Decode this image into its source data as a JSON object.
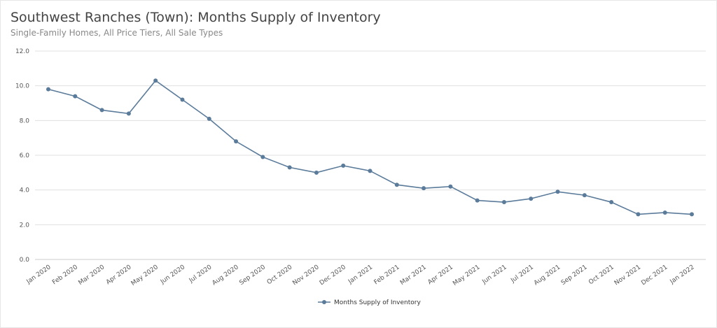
{
  "chart_data": {
    "type": "line",
    "title": "Southwest Ranches (Town): Months Supply of Inventory",
    "subtitle": "Single-Family Homes, All Price Tiers, All Sale Types",
    "categories": [
      "Jan 2020",
      "Feb 2020",
      "Mar 2020",
      "Apr 2020",
      "May 2020",
      "Jun 2020",
      "Jul 2020",
      "Aug 2020",
      "Sep 2020",
      "Oct 2020",
      "Nov 2020",
      "Dec 2020",
      "Jan 2021",
      "Feb 2021",
      "Mar 2021",
      "Apr 2021",
      "May 2021",
      "Jun 2021",
      "Jul 2021",
      "Aug 2021",
      "Sep 2021",
      "Oct 2021",
      "Nov 2021",
      "Dec 2021",
      "Jan 2022"
    ],
    "series": [
      {
        "name": "Months Supply of Inventory",
        "color": "#5b7b9a",
        "values": [
          9.8,
          9.4,
          8.6,
          8.4,
          10.3,
          9.2,
          8.1,
          6.8,
          5.9,
          5.3,
          5.0,
          5.4,
          5.1,
          4.3,
          4.1,
          4.2,
          3.4,
          3.3,
          3.5,
          3.9,
          3.7,
          3.3,
          2.6,
          2.7,
          2.6
        ]
      }
    ],
    "ylim": [
      0,
      12
    ],
    "yticks": [
      "0.0",
      "2.0",
      "4.0",
      "6.0",
      "8.0",
      "10.0",
      "12.0"
    ],
    "grid": true,
    "legend": "bottom-center"
  }
}
